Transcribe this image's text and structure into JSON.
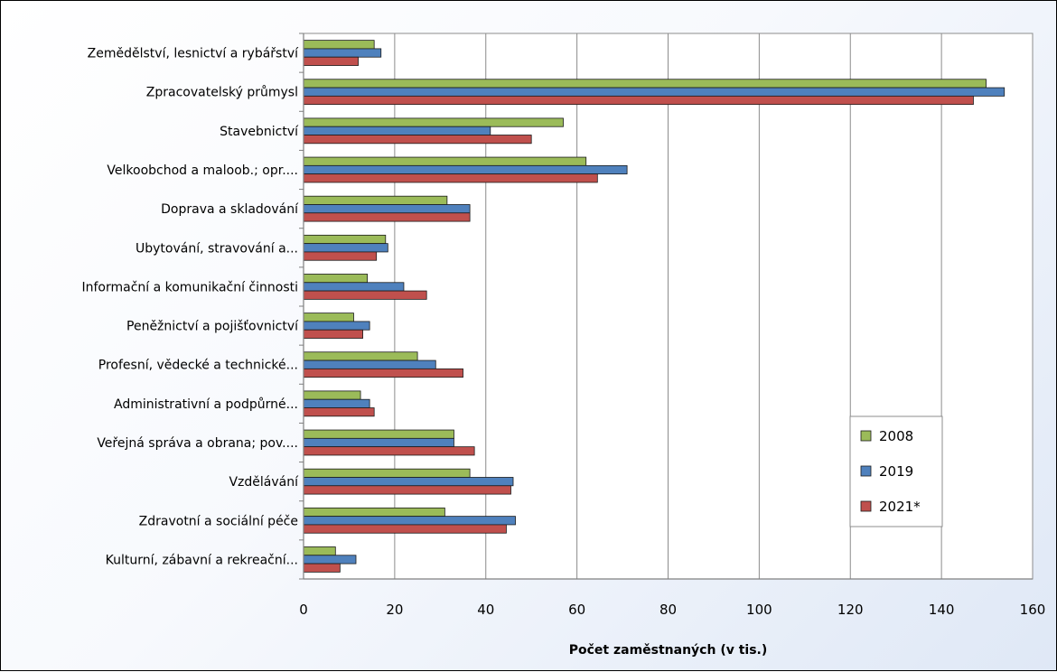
{
  "chart_data": {
    "type": "bar",
    "orientation": "horizontal",
    "title": "",
    "xlabel": "Počet zaměstnaných  (v tis.)",
    "ylabel": "",
    "xlim": [
      0,
      160
    ],
    "xticks": [
      "0",
      "20",
      "40",
      "60",
      "80",
      "100",
      "120",
      "140",
      "160"
    ],
    "grid": "vertical",
    "legend_position": "lower-right",
    "categories": [
      "Zemědělství, lesnictví a rybářství",
      "Zpracovatelský průmysl",
      "Stavebnictví",
      "Velkoobchod a maloob.; opr....",
      "Doprava a skladování",
      "Ubytování, stravování a...",
      "Informační a komunikační činnosti",
      "Peněžnictví a pojišťovnictví",
      "Profesní, vědecké a technické...",
      "Administrativní a podpůrné...",
      "Veřejná správa a obrana; pov....",
      "Vzdělávání",
      "Zdravotní a sociální péče",
      "Kulturní, zábavní a rekreační..."
    ],
    "series": [
      {
        "name": "2008",
        "color": "#9bbb59",
        "values": [
          15.5,
          149.8,
          57,
          62,
          31.5,
          18,
          14,
          11,
          25,
          12.5,
          33,
          36.5,
          31,
          7
        ]
      },
      {
        "name": "2019",
        "color": "#4f81bd",
        "values": [
          17,
          153.8,
          41,
          71,
          36.5,
          18.5,
          22,
          14.5,
          29,
          14.5,
          33,
          46,
          46.5,
          11.5
        ]
      },
      {
        "name": "2021*",
        "color": "#c0504d",
        "values": [
          12,
          147,
          50,
          64.5,
          36.5,
          16,
          27,
          13,
          35,
          15.5,
          37.5,
          45.5,
          44.5,
          8
        ]
      }
    ]
  }
}
